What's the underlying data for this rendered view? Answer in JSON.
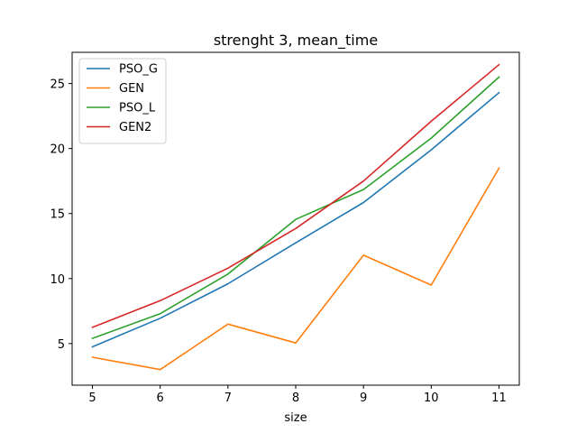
{
  "chart_data": {
    "type": "line",
    "title": "strenght 3, mean_time",
    "xlabel": "size",
    "ylabel": "",
    "x": [
      5,
      6,
      7,
      8,
      9,
      10,
      11
    ],
    "xticks": [
      "5",
      "6",
      "7",
      "8",
      "9",
      "10",
      "11"
    ],
    "yticks": [
      "5",
      "10",
      "15",
      "20",
      "25"
    ],
    "xlim": [
      4.7,
      11.3
    ],
    "ylim": [
      1.8,
      27.4
    ],
    "grid": false,
    "legend_position": "upper-left",
    "series": [
      {
        "name": "PSO_G",
        "color": "#1f77b4",
        "values": [
          4.75,
          6.95,
          9.6,
          12.75,
          15.85,
          19.9,
          24.3
        ]
      },
      {
        "name": "GEN",
        "color": "#ff7f0e",
        "values": [
          3.95,
          3.0,
          6.5,
          5.05,
          11.8,
          9.5,
          18.5
        ]
      },
      {
        "name": "PSO_L",
        "color": "#2ca02c",
        "values": [
          5.4,
          7.3,
          10.35,
          14.55,
          16.85,
          20.8,
          25.5
        ]
      },
      {
        "name": "GEN2",
        "color": "#d62728",
        "values": [
          6.25,
          8.3,
          10.8,
          13.85,
          17.5,
          22.1,
          26.45
        ]
      }
    ]
  }
}
